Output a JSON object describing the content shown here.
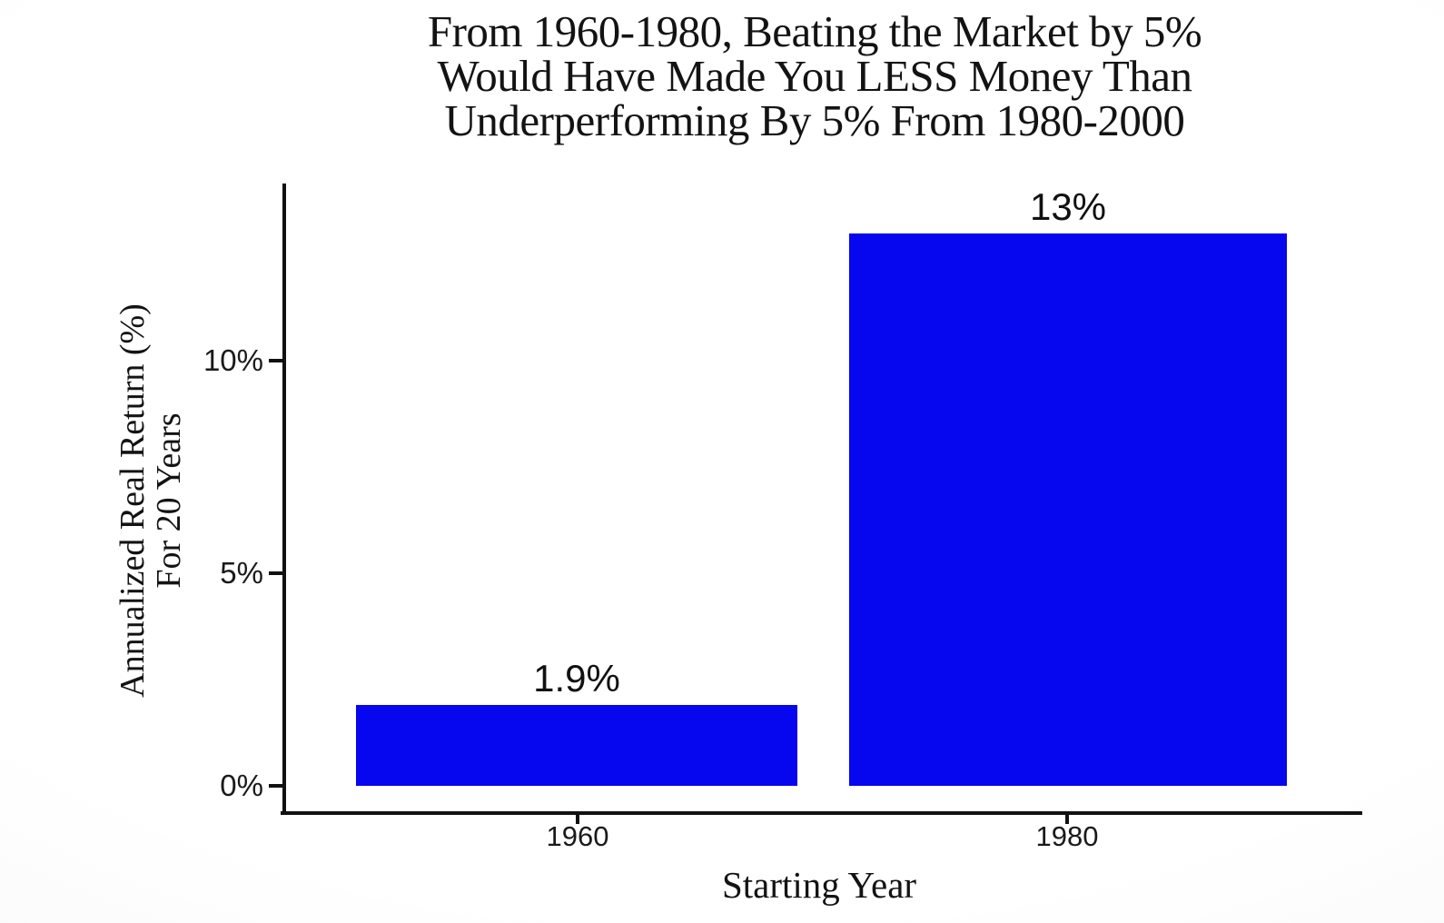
{
  "chart_data": {
    "type": "bar",
    "title": "From 1960-1980, Beating the Market by 5% Would Have Made You LESS Money Than Underperforming By 5% From 1980-2000",
    "title_lines": [
      "From 1960-1980, Beating the Market by 5%",
      "Would Have Made You LESS Money Than",
      "Underperforming By 5% From 1980-2000"
    ],
    "categories": [
      "1960",
      "1980"
    ],
    "values": [
      1.9,
      13
    ],
    "bar_labels": [
      "1.9%",
      "13%"
    ],
    "xlabel": "Starting Year",
    "ylabel": "Annualized Real Return (%) For 20 Years",
    "ylabel_lines": [
      "Annualized Real Return (%)",
      "For 20 Years"
    ],
    "y_ticks_top_to_bottom": [
      "10%",
      "5%",
      "0%"
    ],
    "y_tick_values": [
      10,
      5,
      0
    ],
    "ylim": [
      0,
      14.17
    ],
    "grid": false,
    "legend": false,
    "bar_color": "#0606ef",
    "axis_color": "#111111",
    "text_color": "#141414",
    "background_color": "#fdfdfd"
  }
}
